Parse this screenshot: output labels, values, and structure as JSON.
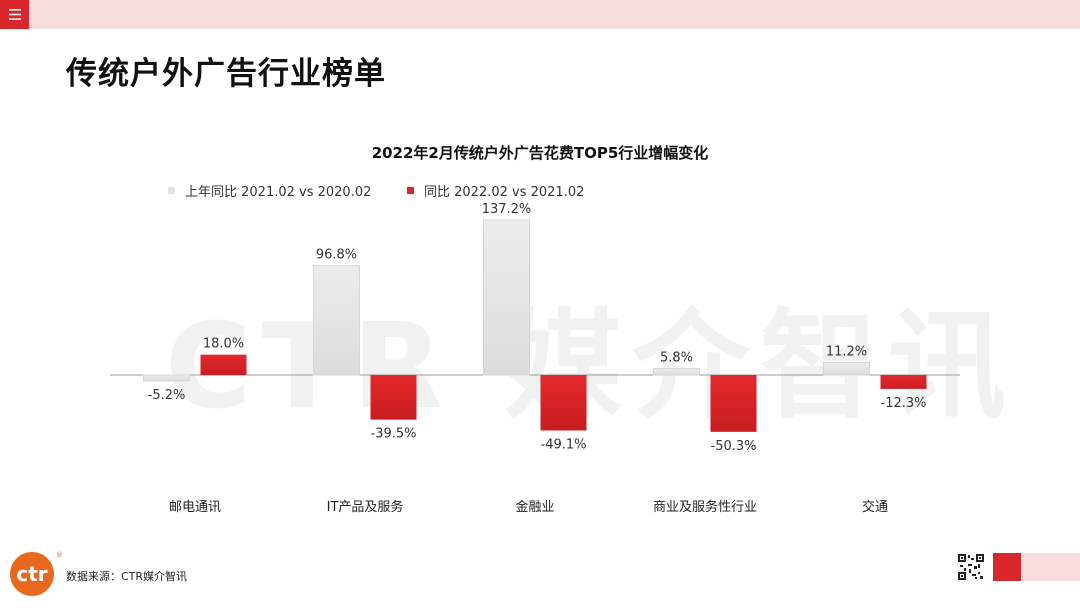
{
  "header": {
    "menu_icon": "hamburger-menu-icon",
    "page_title": "传统户外广告行业榜单"
  },
  "watermark": "CTR 媒介智讯",
  "chart_data": {
    "type": "bar",
    "title": "2022年2月传统户外广告花费TOP5行业增幅变化",
    "categories": [
      "邮电通讯",
      "IT产品及服务",
      "金融业",
      "商业及服务性行业",
      "交通"
    ],
    "series": [
      {
        "name": "上年同比 2021.02 vs 2020.02",
        "values": [
          -5.2,
          96.8,
          137.2,
          5.8,
          11.2
        ],
        "labels": [
          "-5.2%",
          "96.8%",
          "137.2%",
          "5.8%",
          "11.2%"
        ],
        "color": "#e3e3e3"
      },
      {
        "name": "同比 2022.02 vs 2021.02",
        "values": [
          18.0,
          -39.5,
          -49.1,
          -50.3,
          -12.3
        ],
        "labels": [
          "18.0%",
          "-39.5%",
          "-49.1%",
          "-50.3%",
          "-12.3%"
        ],
        "color": "#d9262a"
      }
    ],
    "unit": "%",
    "legend_position": "top-left",
    "grid": false
  },
  "footer": {
    "source": "数据来源：CTR媒介智讯",
    "logo_text": "ctr",
    "logo_mark": "®",
    "qr_icon": "qr-code-icon"
  },
  "colors": {
    "accent": "#d9262a",
    "topbar": "#f7dcdc",
    "logo": "#e8691e"
  }
}
